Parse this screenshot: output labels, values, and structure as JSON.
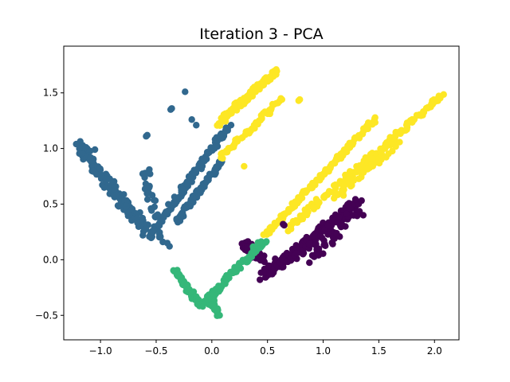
{
  "chart_data": {
    "type": "scatter",
    "title": "Iteration 3 - PCA",
    "xlabel": "",
    "ylabel": "",
    "xlim": [
      -1.33,
      2.22
    ],
    "ylim": [
      -0.72,
      1.92
    ],
    "grid": false,
    "x_ticks": [
      -1.0,
      -0.5,
      0.0,
      0.5,
      1.0,
      1.5,
      2.0
    ],
    "x_tick_labels": [
      "−1.0",
      "−0.5",
      "0.0",
      "0.5",
      "1.0",
      "1.5",
      "2.0"
    ],
    "y_ticks": [
      -0.5,
      0.0,
      0.5,
      1.0,
      1.5
    ],
    "y_tick_labels": [
      "−0.5",
      "0.0",
      "0.5",
      "1.0",
      "1.5"
    ],
    "series": [
      {
        "color": "#31688e",
        "segments": [
          {
            "from": [
              -1.2,
              1.02
            ],
            "to": [
              -0.56,
              0.22
            ],
            "n": 130,
            "spread": 0.05
          },
          {
            "from": [
              -0.55,
              0.22
            ],
            "to": [
              0.15,
              1.21
            ],
            "n": 110,
            "spread": 0.025
          },
          {
            "from": [
              -0.32,
              0.34
            ],
            "to": [
              0.08,
              0.88
            ],
            "n": 70,
            "spread": 0.02
          },
          {
            "from": [
              -0.6,
              0.8
            ],
            "to": [
              -0.48,
              0.2
            ],
            "n": 30,
            "spread": 0.04
          }
        ],
        "points": [
          [
            -0.24,
            1.51
          ],
          [
            -0.37,
            1.35
          ],
          [
            -0.36,
            1.36
          ],
          [
            -0.59,
            1.11
          ],
          [
            -0.58,
            1.12
          ],
          [
            -0.18,
            1.26
          ],
          [
            -0.14,
            1.21
          ],
          [
            -1.13,
            1.01
          ],
          [
            -1.05,
            0.99
          ],
          [
            -0.44,
            0.16
          ],
          [
            -0.4,
            0.15
          ],
          [
            -0.38,
            0.12
          ]
        ]
      },
      {
        "color": "#fde725",
        "segments": [
          {
            "from": [
              0.05,
              1.22
            ],
            "to": [
              0.58,
              1.7
            ],
            "n": 90,
            "spread": 0.025
          },
          {
            "from": [
              0.08,
              0.92
            ],
            "to": [
              0.6,
              1.42
            ],
            "n": 50,
            "spread": 0.02
          },
          {
            "from": [
              0.48,
              0.22
            ],
            "to": [
              1.47,
              1.27
            ],
            "n": 120,
            "spread": 0.018
          },
          {
            "from": [
              0.68,
              0.28
            ],
            "to": [
              2.07,
              1.48
            ],
            "n": 140,
            "spread": 0.025
          },
          {
            "from": [
              1.1,
              0.57
            ],
            "to": [
              1.67,
              1.07
            ],
            "n": 60,
            "spread": 0.035
          }
        ],
        "points": [
          [
            0.63,
            1.44
          ],
          [
            0.62,
            1.45
          ],
          [
            0.78,
            1.43
          ],
          [
            0.79,
            1.44
          ],
          [
            0.29,
            0.84
          ]
        ]
      },
      {
        "color": "#440154",
        "segments": [
          {
            "from": [
              0.28,
              0.15
            ],
            "to": [
              0.45,
              0.0
            ],
            "n": 50,
            "spread": 0.035
          },
          {
            "from": [
              0.45,
              -0.15
            ],
            "to": [
              1.32,
              0.52
            ],
            "n": 130,
            "spread": 0.04
          },
          {
            "from": [
              0.55,
              -0.1
            ],
            "to": [
              1.2,
              0.4
            ],
            "n": 80,
            "spread": 0.04
          },
          {
            "from": [
              0.9,
              0.0
            ],
            "to": [
              1.3,
              0.45
            ],
            "n": 40,
            "spread": 0.05
          }
        ],
        "points": [
          [
            1.36,
            0.4
          ],
          [
            0.65,
            0.31
          ],
          [
            0.64,
            0.32
          ]
        ]
      },
      {
        "color": "#35b779",
        "segments": [
          {
            "from": [
              -0.33,
              -0.1
            ],
            "to": [
              -0.1,
              -0.42
            ],
            "n": 60,
            "spread": 0.02
          },
          {
            "from": [
              -0.07,
              -0.4
            ],
            "to": [
              0.47,
              0.18
            ],
            "n": 80,
            "spread": 0.025
          },
          {
            "from": [
              0.0,
              -0.36
            ],
            "to": [
              0.05,
              -0.49
            ],
            "n": 20,
            "spread": 0.02
          }
        ],
        "points": [
          [
            0.06,
            -0.5
          ],
          [
            0.07,
            -0.5
          ],
          [
            0.38,
            0.07
          ]
        ]
      }
    ]
  }
}
